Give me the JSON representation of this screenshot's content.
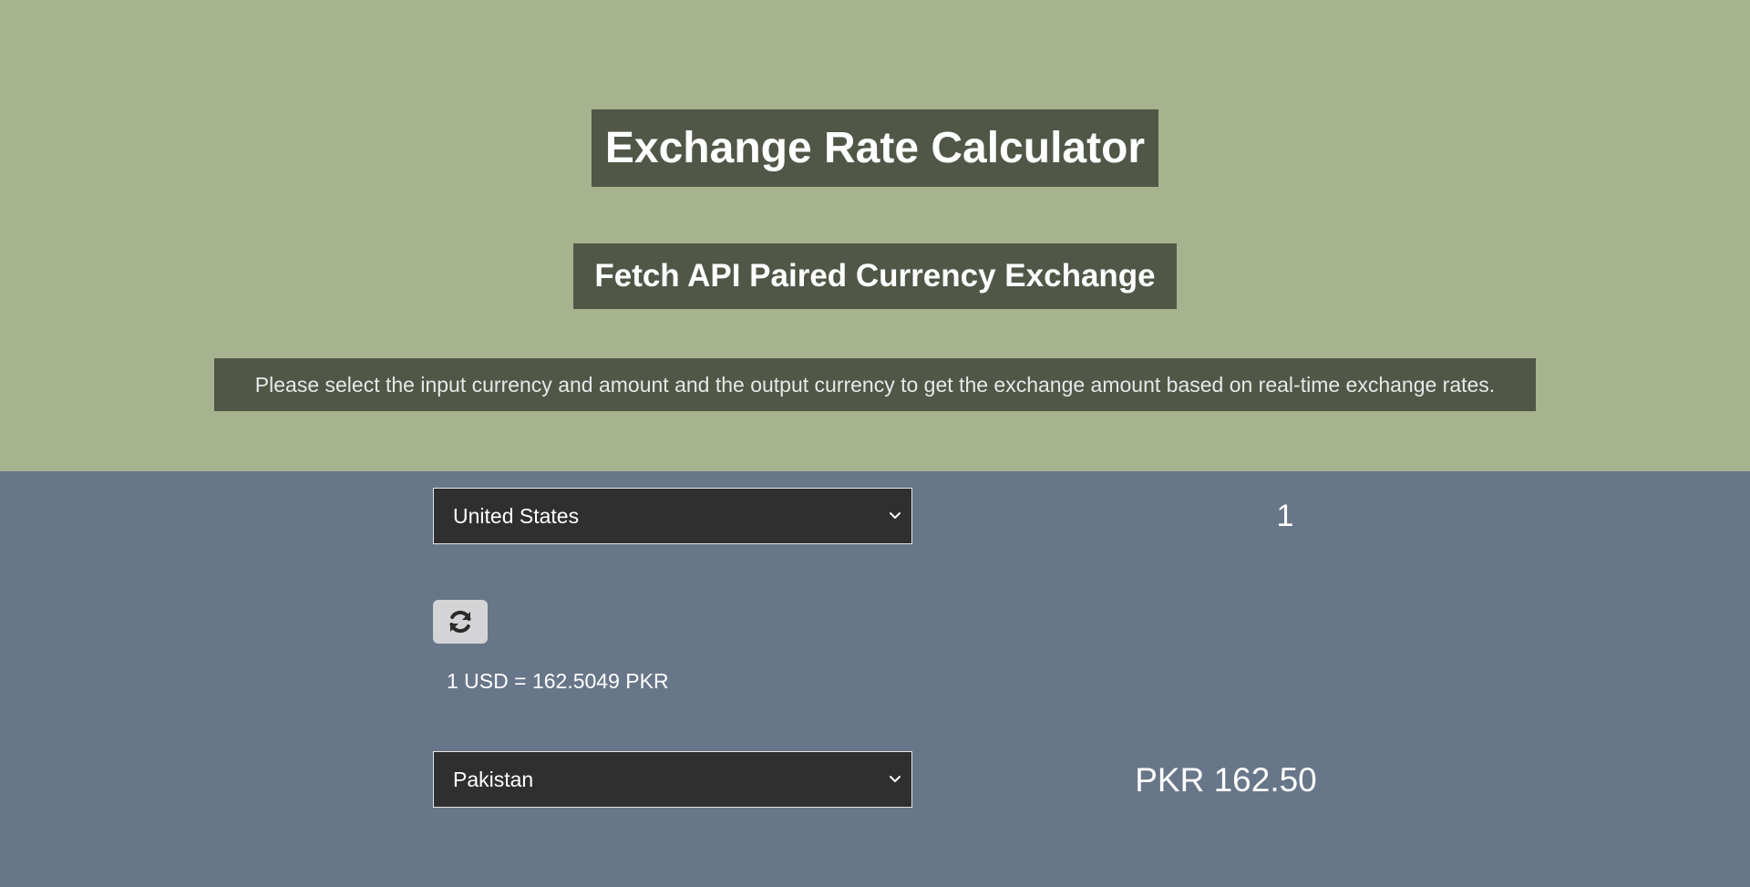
{
  "header": {
    "title": "Exchange Rate Calculator",
    "subtitle": "Fetch API Paired Currency Exchange",
    "instructions": "Please select the input currency and amount and the output currency to get the exchange amount based on real-time exchange rates."
  },
  "converter": {
    "from_currency": {
      "selected": "United States"
    },
    "amount": {
      "value": "1"
    },
    "swap_icon": "refresh-icon",
    "rate_text": "1 USD = 162.5049 PKR",
    "to_currency": {
      "selected": "Pakistan"
    },
    "result": "PKR 162.50"
  },
  "colors": {
    "header_bg": "#a7b28f",
    "main_bg": "#687689",
    "label_bg": "#505747",
    "select_bg": "#2f2f30",
    "swap_button_bg": "#d4d4d6"
  }
}
